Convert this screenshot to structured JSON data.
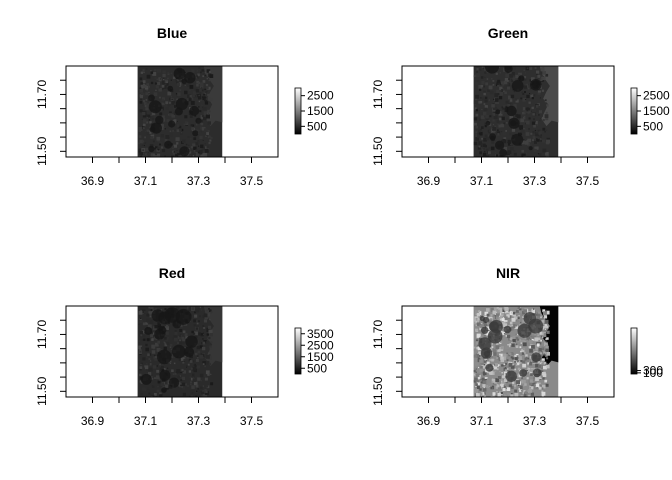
{
  "chart_data": [
    {
      "type": "heatmap",
      "title": "Blue",
      "xlim": [
        36.8,
        37.6
      ],
      "ylim": [
        11.48,
        11.8
      ],
      "x_ticks": [
        "36.9",
        "37.1",
        "37.3",
        "37.5"
      ],
      "y_ticks": [
        "11.50",
        "11.70"
      ],
      "raster_extent": {
        "x": [
          37.07,
          37.39
        ],
        "y": [
          11.48,
          11.8
        ]
      },
      "legend_ticks": [
        "2500",
        "1500",
        "500"
      ],
      "legend_range": [
        0,
        3000
      ],
      "base_gray": "#2c2c2c",
      "right_gray": "#3a3a3a",
      "texture": "dark"
    },
    {
      "type": "heatmap",
      "title": "Green",
      "xlim": [
        36.8,
        37.6
      ],
      "ylim": [
        11.48,
        11.8
      ],
      "x_ticks": [
        "36.9",
        "37.1",
        "37.3",
        "37.5"
      ],
      "y_ticks": [
        "11.50",
        "11.70"
      ],
      "raster_extent": {
        "x": [
          37.07,
          37.39
        ],
        "y": [
          11.48,
          11.8
        ]
      },
      "legend_ticks": [
        "2500",
        "1500",
        "500"
      ],
      "legend_range": [
        0,
        3000
      ],
      "base_gray": "#2e2e2e",
      "right_gray": "#4a4a4a",
      "texture": "dark"
    },
    {
      "type": "heatmap",
      "title": "Red",
      "xlim": [
        36.8,
        37.6
      ],
      "ylim": [
        11.48,
        11.8
      ],
      "x_ticks": [
        "36.9",
        "37.1",
        "37.3",
        "37.5"
      ],
      "y_ticks": [
        "11.50",
        "11.70"
      ],
      "raster_extent": {
        "x": [
          37.07,
          37.39
        ],
        "y": [
          11.48,
          11.8
        ]
      },
      "legend_ticks": [
        "3500",
        "2500",
        "1500",
        "500"
      ],
      "legend_range": [
        0,
        4000
      ],
      "base_gray": "#2a2a2a",
      "right_gray": "#363636",
      "texture": "dark"
    },
    {
      "type": "heatmap",
      "title": "NIR",
      "xlim": [
        36.8,
        37.6
      ],
      "ylim": [
        11.48,
        11.8
      ],
      "x_ticks": [
        "36.9",
        "37.1",
        "37.3",
        "37.5"
      ],
      "y_ticks": [
        "11.50",
        "11.70"
      ],
      "raster_extent": {
        "x": [
          37.07,
          37.39
        ],
        "y": [
          11.48,
          11.8
        ]
      },
      "legend_ticks": [
        "300",
        "100"
      ],
      "legend_range": [
        0,
        4000
      ],
      "base_gray": "#8a8a8a",
      "right_gray": "#050505",
      "texture": "bright"
    }
  ]
}
